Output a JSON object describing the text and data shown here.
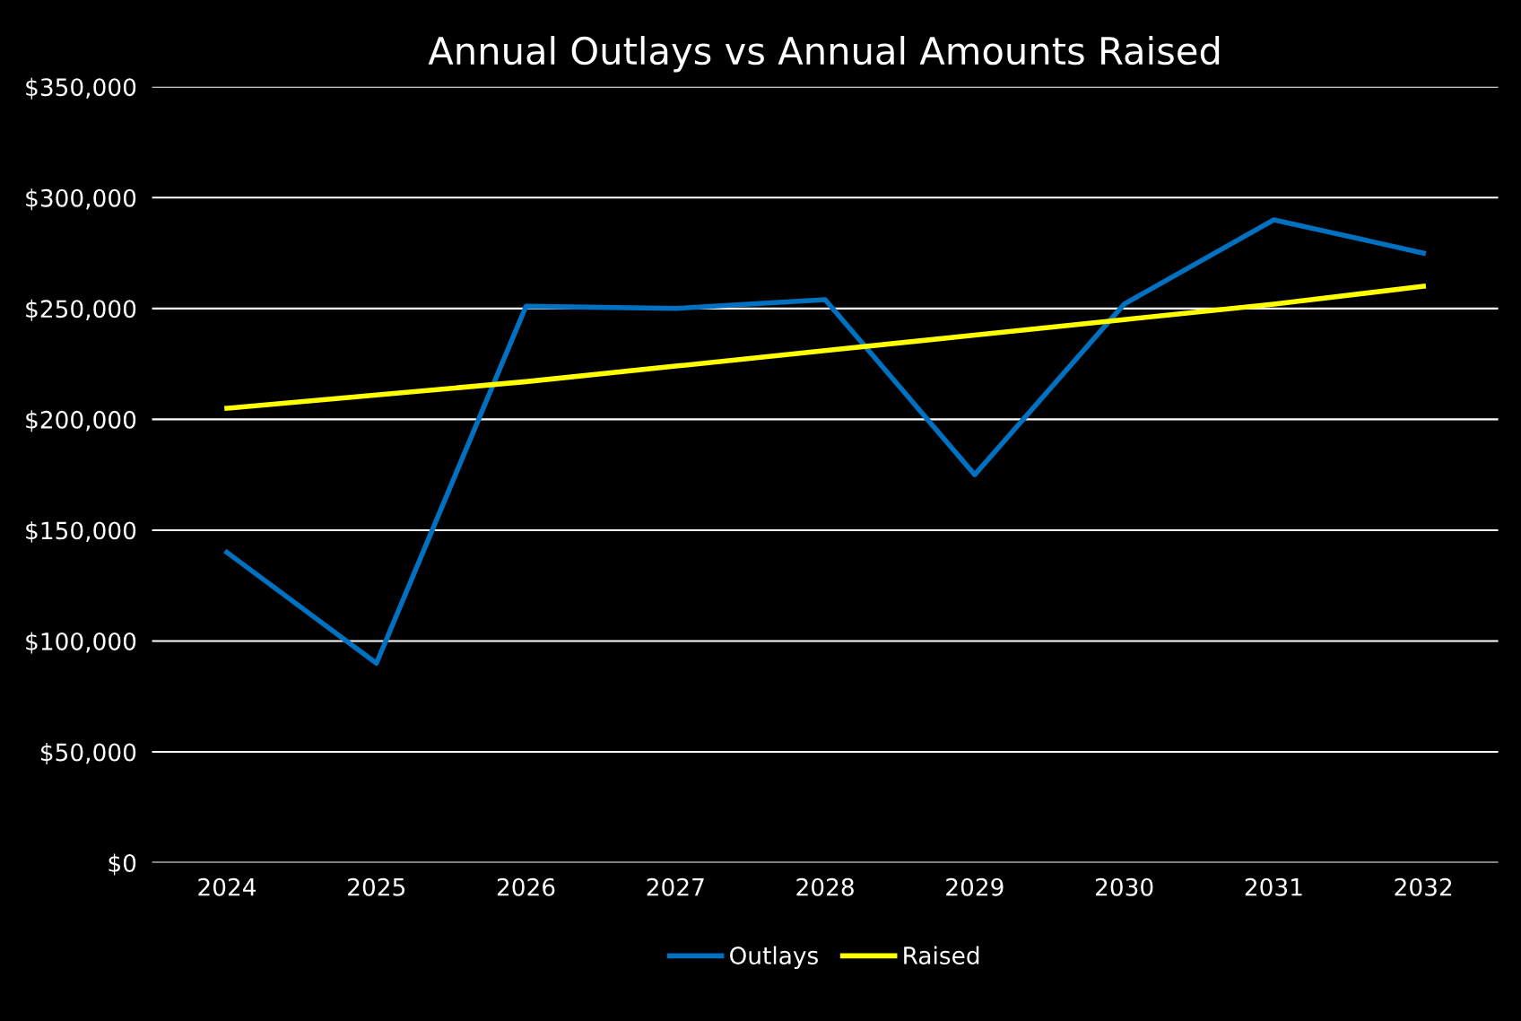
{
  "chart_data": {
    "type": "line",
    "title": "Annual Outlays vs Annual Amounts Raised",
    "categories": [
      "2024",
      "2025",
      "2026",
      "2027",
      "2028",
      "2029",
      "2030",
      "2031",
      "2032"
    ],
    "series": [
      {
        "name": "Outlays",
        "color": "#0070c0",
        "values": [
          140000,
          90000,
          251000,
          250000,
          254000,
          175000,
          252000,
          290000,
          275000
        ]
      },
      {
        "name": "Raised",
        "color": "#ffff00",
        "values": [
          205000,
          211000,
          217000,
          224000,
          231000,
          238000,
          245000,
          252000,
          260000
        ]
      }
    ],
    "ylim": [
      0,
      350000
    ],
    "yticks": [
      {
        "value": 0,
        "label": "$0"
      },
      {
        "value": 50000,
        "label": "$50,000"
      },
      {
        "value": 100000,
        "label": "$100,000"
      },
      {
        "value": 150000,
        "label": "$150,000"
      },
      {
        "value": 200000,
        "label": "$200,000"
      },
      {
        "value": 250000,
        "label": "$250,000"
      },
      {
        "value": 300000,
        "label": "$300,000"
      },
      {
        "value": 350000,
        "label": "$350,000"
      }
    ],
    "grid": "y",
    "legend": "bottom",
    "marker": "none",
    "line_style": "solid"
  }
}
